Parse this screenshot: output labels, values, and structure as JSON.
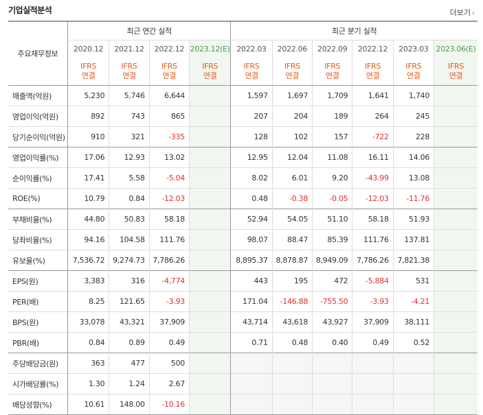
{
  "title": "기업실적분석",
  "more_label": "더보기",
  "group_label": "주요재무정보",
  "annual_group": "최근 연간 실적",
  "quarter_group": "최근 분기 실적",
  "periods": [
    {
      "label": "2020.12",
      "est": false
    },
    {
      "label": "2021.12",
      "est": false
    },
    {
      "label": "2022.12",
      "est": false
    },
    {
      "label": "2023.12(E)",
      "est": true
    },
    {
      "label": "2022.03",
      "est": false
    },
    {
      "label": "2022.06",
      "est": false
    },
    {
      "label": "2022.09",
      "est": false
    },
    {
      "label": "2022.12",
      "est": false
    },
    {
      "label": "2023.03",
      "est": false
    },
    {
      "label": "2023.06(E)",
      "est": true
    }
  ],
  "ifrs_line1": "IFRS",
  "ifrs_line2": "연결",
  "rows": [
    {
      "label": "매출액(억원)",
      "values": [
        "5,230",
        "5,746",
        "6,644",
        "",
        "1,597",
        "1,697",
        "1,709",
        "1,641",
        "1,740",
        ""
      ]
    },
    {
      "label": "영업이익(억원)",
      "values": [
        "892",
        "743",
        "865",
        "",
        "207",
        "204",
        "189",
        "264",
        "245",
        ""
      ]
    },
    {
      "label": "당기순이익(억원)",
      "values": [
        "910",
        "321",
        "-335",
        "",
        "128",
        "102",
        "157",
        "-722",
        "228",
        ""
      ]
    },
    {
      "label": "영업이익률(%)",
      "values": [
        "17.06",
        "12.93",
        "13.02",
        "",
        "12.95",
        "12.04",
        "11.08",
        "16.11",
        "14.06",
        ""
      ]
    },
    {
      "label": "순이익률(%)",
      "values": [
        "17.41",
        "5.58",
        "-5.04",
        "",
        "8.02",
        "6.01",
        "9.20",
        "-43.99",
        "13.08",
        ""
      ]
    },
    {
      "label": "ROE(%)",
      "values": [
        "10.79",
        "0.84",
        "-12.03",
        "",
        "0.48",
        "-0.38",
        "-0.05",
        "-12.03",
        "-11.76",
        ""
      ]
    },
    {
      "label": "부채비율(%)",
      "values": [
        "44.80",
        "50.83",
        "58.18",
        "",
        "52.94",
        "54.05",
        "51.10",
        "58.18",
        "51.93",
        ""
      ]
    },
    {
      "label": "당좌비율(%)",
      "values": [
        "94.16",
        "104.58",
        "111.76",
        "",
        "98.07",
        "88.47",
        "85.39",
        "111.76",
        "137.81",
        ""
      ]
    },
    {
      "label": "유보율(%)",
      "values": [
        "7,536.72",
        "9,274.73",
        "7,786.26",
        "",
        "8,895.37",
        "8,878.87",
        "8,949.09",
        "7,786.26",
        "7,821.38",
        ""
      ]
    },
    {
      "label": "EPS(원)",
      "values": [
        "3,383",
        "316",
        "-4,774",
        "",
        "443",
        "195",
        "472",
        "-5,884",
        "531",
        ""
      ]
    },
    {
      "label": "PER(배)",
      "values": [
        "8.25",
        "121.65",
        "-3.93",
        "",
        "171.04",
        "-146.88",
        "-755.50",
        "-3.93",
        "-4.21",
        ""
      ]
    },
    {
      "label": "BPS(원)",
      "values": [
        "33,078",
        "43,321",
        "37,909",
        "",
        "43,714",
        "43,618",
        "43,927",
        "37,909",
        "38,111",
        ""
      ]
    },
    {
      "label": "PBR(배)",
      "values": [
        "0.84",
        "0.89",
        "0.49",
        "",
        "0.71",
        "0.48",
        "0.40",
        "0.49",
        "0.52",
        ""
      ]
    },
    {
      "label": "주당배당금(원)",
      "values": [
        "363",
        "477",
        "500",
        "",
        "",
        "",
        "",
        "",
        "",
        ""
      ]
    },
    {
      "label": "시가배당률(%)",
      "values": [
        "1.30",
        "1.24",
        "2.67",
        "",
        "",
        "",
        "",
        "",
        "",
        ""
      ]
    },
    {
      "label": "배당성향(%)",
      "values": [
        "10.61",
        "148.00",
        "-10.16",
        "",
        "",
        "",
        "",
        "",
        "",
        ""
      ]
    }
  ]
}
